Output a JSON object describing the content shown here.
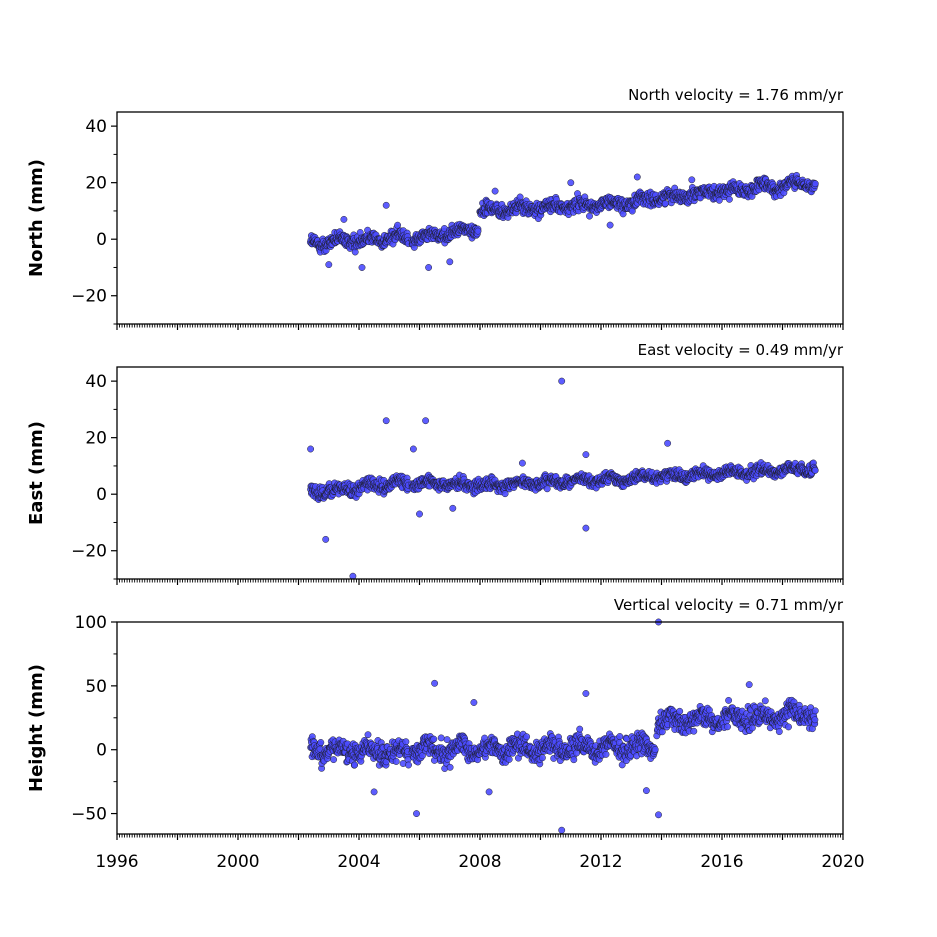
{
  "chart_data": [
    {
      "type": "scatter",
      "title": "North velocity = 1.76 mm/yr",
      "ylabel": "North (mm)",
      "xlabel": "",
      "ylim": [
        -30,
        45
      ],
      "yticks": [
        -20,
        0,
        20,
        40
      ],
      "yticklabels": [
        "−20",
        "0",
        "20",
        "40"
      ],
      "xlim": [
        1996,
        2020
      ],
      "marker_color": "#4b4bff",
      "series": [
        {
          "segments": [
            {
              "x0": 2002.4,
              "x1": 2005.65,
              "y0": -1.5,
              "y1": 1.0,
              "spread": 2.4
            },
            {
              "x0": 2005.75,
              "x1": 2007.95,
              "y0": 0.0,
              "y1": 4.0,
              "spread": 2.4
            },
            {
              "x0": 2008.0,
              "x1": 2013.2,
              "y0": 10.0,
              "y1": 13.0,
              "spread": 2.4
            },
            {
              "x0": 2013.2,
              "x1": 2019.1,
              "y0": 14.0,
              "y1": 20.0,
              "spread": 2.2
            }
          ],
          "outliers": [
            [
              2003.0,
              -9
            ],
            [
              2003.5,
              7
            ],
            [
              2004.1,
              -10
            ],
            [
              2004.9,
              12
            ],
            [
              2006.3,
              -10
            ],
            [
              2007.0,
              -8
            ],
            [
              2008.5,
              17
            ],
            [
              2011.0,
              20
            ],
            [
              2012.3,
              5
            ],
            [
              2013.2,
              22
            ],
            [
              2015.0,
              21
            ]
          ]
        }
      ]
    },
    {
      "type": "scatter",
      "title": "East velocity = 0.49 mm/yr",
      "ylabel": "East (mm)",
      "xlabel": "",
      "ylim": [
        -30,
        45
      ],
      "yticks": [
        -20,
        0,
        20,
        40
      ],
      "yticklabels": [
        "−20",
        "0",
        "20",
        "40"
      ],
      "xlim": [
        1996,
        2020
      ],
      "marker_color": "#4b4bff",
      "series": [
        {
          "segments": [
            {
              "x0": 2002.4,
              "x1": 2005.65,
              "y0": 0.5,
              "y1": 4.0,
              "spread": 2.2
            },
            {
              "x0": 2005.75,
              "x1": 2008.0,
              "y0": 4.0,
              "y1": 3.0,
              "spread": 2.0
            },
            {
              "x0": 2008.0,
              "x1": 2013.5,
              "y0": 3.0,
              "y1": 6.0,
              "spread": 2.0
            },
            {
              "x0": 2013.5,
              "x1": 2019.1,
              "y0": 6.0,
              "y1": 9.0,
              "spread": 1.9
            }
          ],
          "outliers": [
            [
              2002.4,
              16
            ],
            [
              2002.9,
              -16
            ],
            [
              2003.8,
              -29
            ],
            [
              2004.9,
              26
            ],
            [
              2005.8,
              16
            ],
            [
              2006.2,
              26
            ],
            [
              2006.0,
              -7
            ],
            [
              2007.1,
              -5
            ],
            [
              2010.7,
              40
            ],
            [
              2011.5,
              -12
            ],
            [
              2011.5,
              14
            ],
            [
              2014.2,
              18
            ],
            [
              2009.4,
              11
            ]
          ]
        }
      ]
    },
    {
      "type": "scatter",
      "title": "Vertical velocity = 0.71 mm/yr",
      "ylabel": "Height (mm)",
      "xlabel": "",
      "ylim": [
        -66,
        100
      ],
      "yticks": [
        -50,
        0,
        50,
        100
      ],
      "yticklabels": [
        "−50",
        "0",
        "50",
        "100"
      ],
      "xlim": [
        1996,
        2020
      ],
      "xticks": [
        1996,
        2000,
        2004,
        2008,
        2012,
        2016,
        2020
      ],
      "xticklabels": [
        "1996",
        "2000",
        "2004",
        "2008",
        "2012",
        "2016",
        "2020"
      ],
      "marker_color": "#4b4bff",
      "series": [
        {
          "segments": [
            {
              "x0": 2002.4,
              "x1": 2005.65,
              "y0": 0.0,
              "y1": -3.0,
              "spread": 8.5
            },
            {
              "x0": 2005.75,
              "x1": 2013.8,
              "y0": 0.0,
              "y1": 2.0,
              "spread": 8.5
            },
            {
              "x0": 2013.85,
              "x1": 2019.1,
              "y0": 22.0,
              "y1": 28.0,
              "spread": 8.0
            }
          ],
          "outliers": [
            [
              2006.5,
              52
            ],
            [
              2007.8,
              37
            ],
            [
              2005.9,
              -50
            ],
            [
              2008.3,
              -33
            ],
            [
              2010.7,
              -63
            ],
            [
              2011.5,
              44
            ],
            [
              2013.9,
              100
            ],
            [
              2013.9,
              -51
            ],
            [
              2013.5,
              -32
            ],
            [
              2016.9,
              51
            ],
            [
              2004.5,
              -33
            ]
          ]
        }
      ]
    }
  ]
}
